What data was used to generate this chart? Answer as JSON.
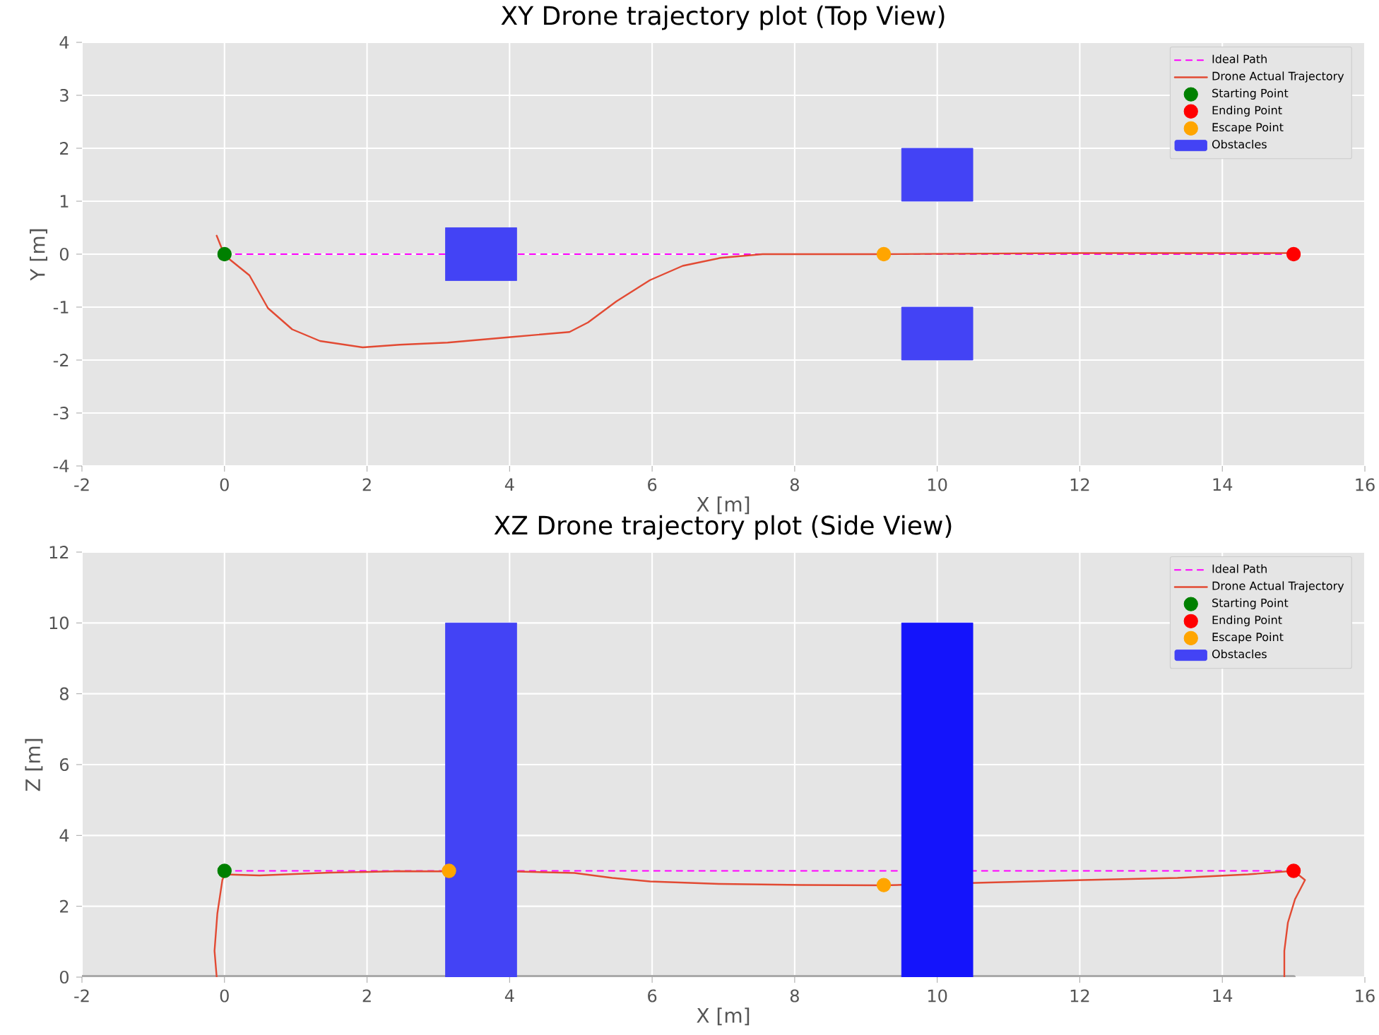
{
  "chart_data": [
    {
      "type": "line",
      "title": "XY Drone trajectory plot (Top View)",
      "xlabel": "X [m]",
      "ylabel": "Y [m]",
      "xlim": [
        -2,
        16
      ],
      "ylim": [
        -4,
        4
      ],
      "xticks": [
        -2,
        0,
        2,
        4,
        6,
        8,
        10,
        12,
        14,
        16
      ],
      "yticks": [
        -4,
        -3,
        -2,
        -1,
        0,
        1,
        2,
        3,
        4
      ],
      "grid": true,
      "legend": "top right",
      "series": [
        {
          "name": "Ideal Path",
          "line_style": "dashed",
          "color": "#ff00ff",
          "x": [
            0,
            15
          ],
          "values": [
            0,
            0
          ]
        },
        {
          "name": "Drone Actual Trajectory",
          "line_style": "solid",
          "color": "#e24a33",
          "x": [
            -0.11,
            0,
            0.35,
            0.61,
            0.95,
            1.34,
            1.94,
            2.46,
            3.13,
            3.98,
            4.84,
            5.1,
            5.5,
            5.97,
            6.43,
            6.96,
            7.55,
            9.25,
            12,
            15
          ],
          "values": [
            0.35,
            -0.02,
            -0.4,
            -1.02,
            -1.42,
            -1.64,
            -1.76,
            -1.71,
            -1.67,
            -1.57,
            -1.47,
            -1.29,
            -0.89,
            -0.49,
            -0.22,
            -0.07,
            0,
            0,
            0.02,
            0.02
          ]
        },
        {
          "name": "Starting Point",
          "type": "scatter",
          "color": "#008000",
          "x": [
            0
          ],
          "values": [
            0
          ]
        },
        {
          "name": "Ending Point",
          "type": "scatter",
          "color": "#ff0000",
          "x": [
            15
          ],
          "values": [
            0
          ]
        },
        {
          "name": "Escape Point",
          "type": "scatter",
          "color": "#ffa500",
          "x": [
            9.25
          ],
          "values": [
            0
          ]
        },
        {
          "name": "Obstacles",
          "type": "area",
          "color": "#4343f5",
          "x": [
            3.1,
            3.1,
            4.1,
            4.1
          ],
          "values": [
            -0.5,
            0.5,
            0.5,
            -0.5
          ]
        },
        {
          "type": "area",
          "color": "#4343f5",
          "x": [
            9.5,
            9.5,
            10.5,
            10.5
          ],
          "values": [
            1,
            2,
            2,
            1
          ]
        },
        {
          "type": "area",
          "color": "#4343f5",
          "x": [
            9.5,
            9.5,
            10.5,
            10.5
          ],
          "values": [
            -2,
            -1,
            -1,
            -2
          ]
        }
      ]
    },
    {
      "type": "line",
      "title": "XZ Drone trajectory plot (Side View)",
      "xlabel": "X [m]",
      "ylabel": "Z [m]",
      "xlim": [
        -2,
        16
      ],
      "ylim": [
        0,
        12
      ],
      "xticks": [
        -2,
        0,
        2,
        4,
        6,
        8,
        10,
        12,
        14,
        16
      ],
      "yticks": [
        0,
        2,
        4,
        6,
        8,
        10,
        12
      ],
      "grid": true,
      "legend": "top right",
      "series": [
        {
          "line_style": "solid",
          "color": "#a9a9a9",
          "x": [
            -2,
            15
          ],
          "values": [
            0,
            0
          ]
        },
        {
          "name": "Ideal Path",
          "line_style": "dashed",
          "color": "#ff00ff",
          "x": [
            0,
            15
          ],
          "values": [
            3,
            3
          ]
        },
        {
          "name": "Drone Actual Trajectory",
          "line_style": "solid",
          "color": "#e24a33",
          "x": [
            -0.11,
            -0.14,
            -0.1,
            -0.03,
            0,
            0.49,
            1.48,
            2.47,
            4.12,
            4.91,
            5.44,
            5.97,
            6.96,
            8.09,
            9.25,
            10.73,
            12.05,
            13.37,
            14.36,
            15,
            15.16,
            15.02,
            14.92,
            14.87,
            14.87
          ],
          "values": [
            0.01,
            0.74,
            1.8,
            2.74,
            2.9,
            2.87,
            2.95,
            2.99,
            2.98,
            2.94,
            2.8,
            2.7,
            2.63,
            2.6,
            2.59,
            2.67,
            2.74,
            2.8,
            2.9,
            3,
            2.74,
            2.2,
            1.54,
            0.74,
            0.01
          ]
        },
        {
          "name": "Starting Point",
          "type": "scatter",
          "color": "#008000",
          "x": [
            0
          ],
          "values": [
            3
          ]
        },
        {
          "name": "Ending Point",
          "type": "scatter",
          "color": "#ff0000",
          "x": [
            15
          ],
          "values": [
            3
          ]
        },
        {
          "name": "Escape Point",
          "type": "scatter",
          "color": "#ffa500",
          "x": [
            3.15,
            9.25
          ],
          "values": [
            3,
            2.6
          ]
        },
        {
          "name": "Obstacles",
          "type": "area",
          "color": "#4343f5",
          "x": [
            3.1,
            3.1,
            4.1,
            4.1
          ],
          "values": [
            0,
            10,
            10,
            0
          ]
        },
        {
          "type": "area",
          "color": "#1414fb",
          "x": [
            9.5,
            9.5,
            10.5,
            10.5
          ],
          "values": [
            0,
            10,
            10,
            0
          ]
        }
      ]
    }
  ]
}
